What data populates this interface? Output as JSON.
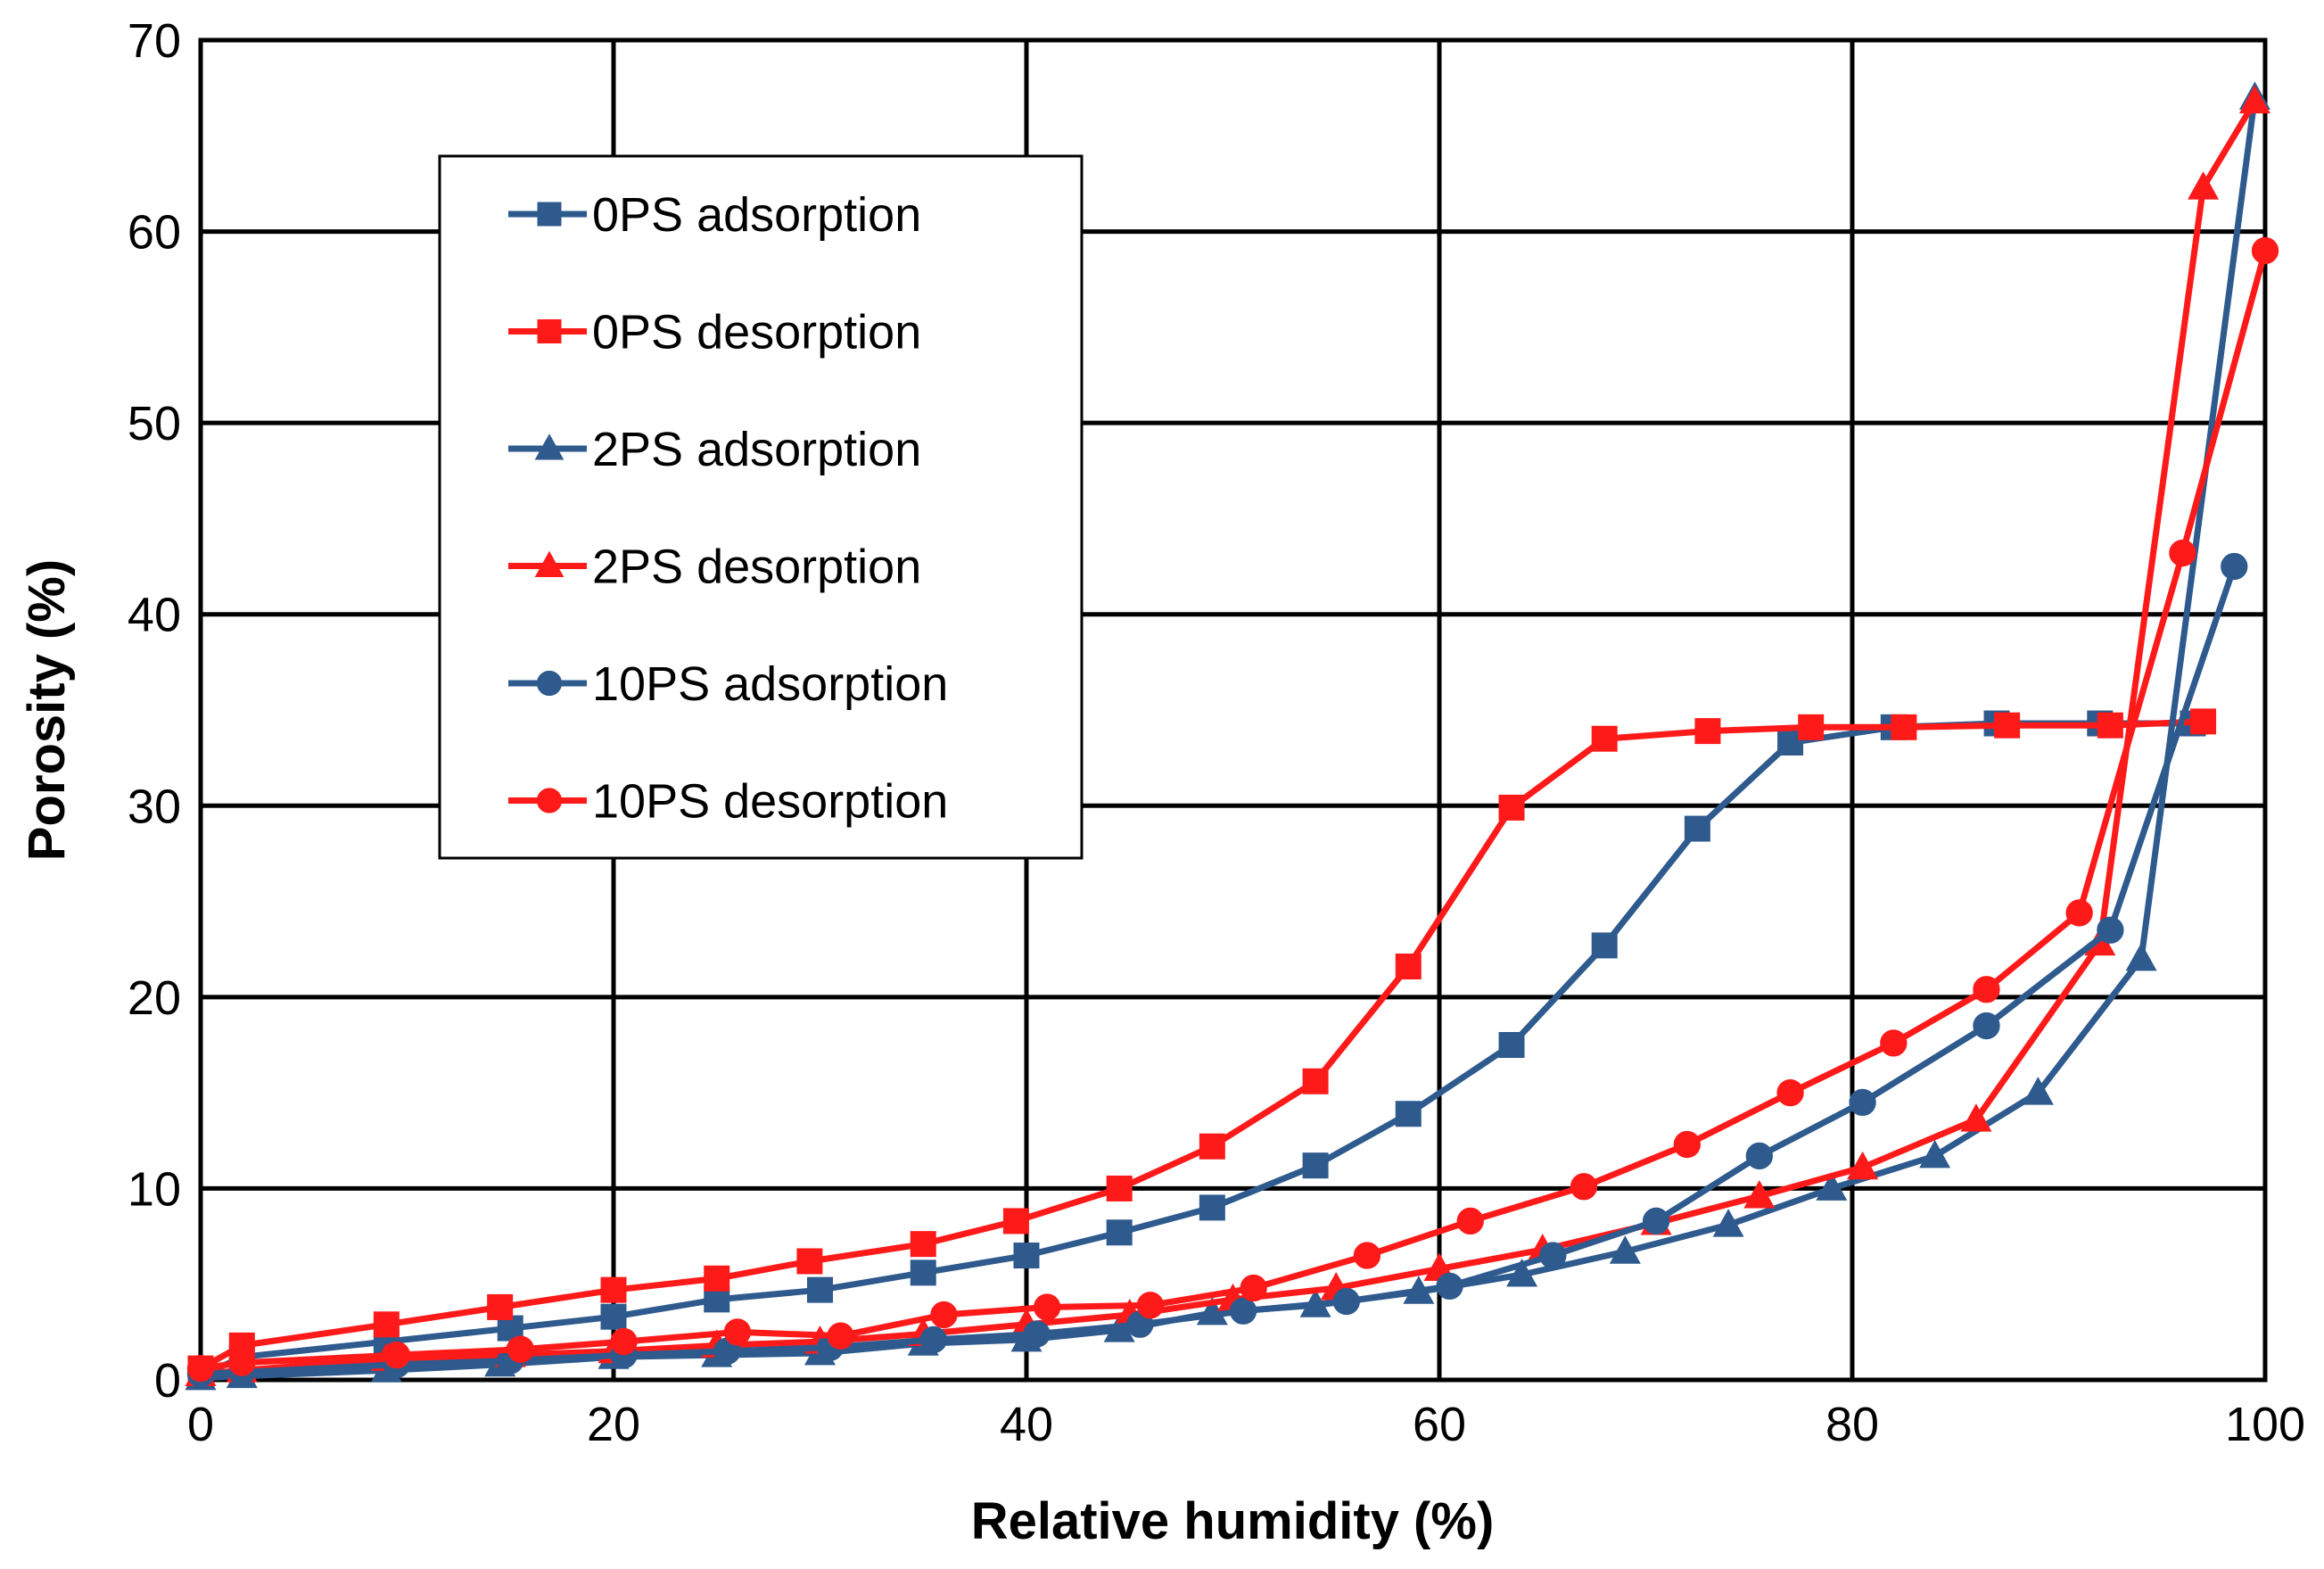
{
  "chart_data": {
    "type": "line",
    "title": "",
    "xlabel": "Relative humidity (%)",
    "ylabel": "Porosity (%)",
    "xlim": [
      0,
      100
    ],
    "ylim": [
      0,
      70
    ],
    "xticks": [
      0,
      20,
      40,
      60,
      80,
      100
    ],
    "yticks": [
      0,
      10,
      20,
      30,
      40,
      50,
      60,
      70
    ],
    "xtick_labels": [
      "0",
      "20",
      "40",
      "60",
      "80",
      "100"
    ],
    "ytick_labels": [
      "0",
      "10",
      "20",
      "30",
      "40",
      "50",
      "60",
      "70"
    ],
    "grid": true,
    "legend_position": "upper-left",
    "colors": {
      "blue": "#2e5a8e",
      "red": "#ff1a1a"
    },
    "series": [
      {
        "name": "0PS adsorption",
        "color": "#2e5a8e",
        "marker": "square",
        "x": [
          0,
          2,
          9,
          15,
          20,
          25,
          30,
          35,
          40,
          44.5,
          49,
          54,
          58.5,
          63.5,
          68,
          72.5,
          77,
          82,
          87,
          92,
          96.5
        ],
        "y": [
          0.2,
          1.2,
          2.0,
          2.7,
          3.3,
          4.2,
          4.7,
          5.6,
          6.5,
          7.7,
          9.0,
          11.2,
          13.9,
          17.5,
          22.7,
          28.8,
          33.3,
          34.1,
          34.3,
          34.3,
          34.3
        ]
      },
      {
        "name": "0PS desorption",
        "color": "#ff1a1a",
        "marker": "square",
        "x": [
          0,
          2,
          9,
          14.5,
          20,
          25,
          29.5,
          35,
          39.5,
          44.5,
          49,
          54,
          58.5,
          63.5,
          68,
          73,
          78,
          82.5,
          87.5,
          92.5,
          97
        ],
        "y": [
          0.6,
          1.8,
          2.9,
          3.8,
          4.7,
          5.3,
          6.2,
          7.1,
          8.3,
          10.0,
          12.2,
          15.6,
          21.6,
          29.9,
          33.5,
          33.9,
          34.1,
          34.1,
          34.2,
          34.2,
          34.4
        ]
      },
      {
        "name": "2PS adsorption",
        "color": "#2e5a8e",
        "marker": "triangle",
        "x": [
          0,
          2,
          9,
          14.5,
          20,
          25,
          30,
          35,
          40,
          44.5,
          49,
          54,
          59,
          64,
          69,
          74,
          79,
          84,
          89,
          94,
          99.5
        ],
        "y": [
          0.1,
          0.2,
          0.5,
          0.8,
          1.2,
          1.3,
          1.4,
          1.9,
          2.1,
          2.6,
          3.5,
          3.9,
          4.6,
          5.5,
          6.7,
          8.1,
          10.0,
          11.7,
          15.0,
          22.0,
          67.0
        ]
      },
      {
        "name": "2PS desorption",
        "color": "#ff1a1a",
        "marker": "triangle",
        "x": [
          0,
          2,
          9,
          15,
          20,
          25,
          30,
          35,
          40,
          45,
          50,
          55,
          60,
          65,
          70.5,
          75.5,
          80.5,
          86,
          92,
          97,
          99.5
        ],
        "y": [
          0.3,
          0.5,
          1.1,
          1.3,
          1.5,
          1.8,
          2.0,
          2.4,
          2.9,
          3.4,
          4.2,
          4.8,
          5.8,
          6.8,
          8.2,
          9.6,
          11.1,
          13.6,
          22.8,
          62.3,
          66.8
        ]
      },
      {
        "name": "10PS adsorption",
        "color": "#2e5a8e",
        "marker": "circle",
        "x": [
          0,
          2,
          9.5,
          15,
          20.5,
          25.5,
          30.5,
          35.5,
          40.5,
          45.5,
          50.5,
          55.5,
          60.5,
          65.5,
          70.5,
          75.5,
          80.5,
          86.5,
          92.5,
          98.5
        ],
        "y": [
          0.3,
          0.4,
          0.8,
          1.0,
          1.3,
          1.5,
          1.7,
          2.1,
          2.4,
          2.9,
          3.6,
          4.1,
          4.9,
          6.5,
          8.3,
          11.7,
          14.5,
          18.5,
          23.5,
          42.5
        ]
      },
      {
        "name": "10PS desorption",
        "color": "#ff1a1a",
        "marker": "circle",
        "x": [
          0,
          2,
          9.5,
          15.5,
          20.5,
          26,
          31,
          36,
          41,
          46,
          51,
          56.5,
          61.5,
          67,
          72,
          77,
          82,
          86.5,
          91,
          96,
          100
        ],
        "y": [
          0.6,
          0.9,
          1.3,
          1.6,
          2.0,
          2.5,
          2.3,
          3.4,
          3.8,
          3.9,
          4.8,
          6.5,
          8.3,
          10.1,
          12.3,
          15.0,
          17.6,
          20.4,
          24.4,
          43.2,
          59.0
        ]
      }
    ]
  }
}
